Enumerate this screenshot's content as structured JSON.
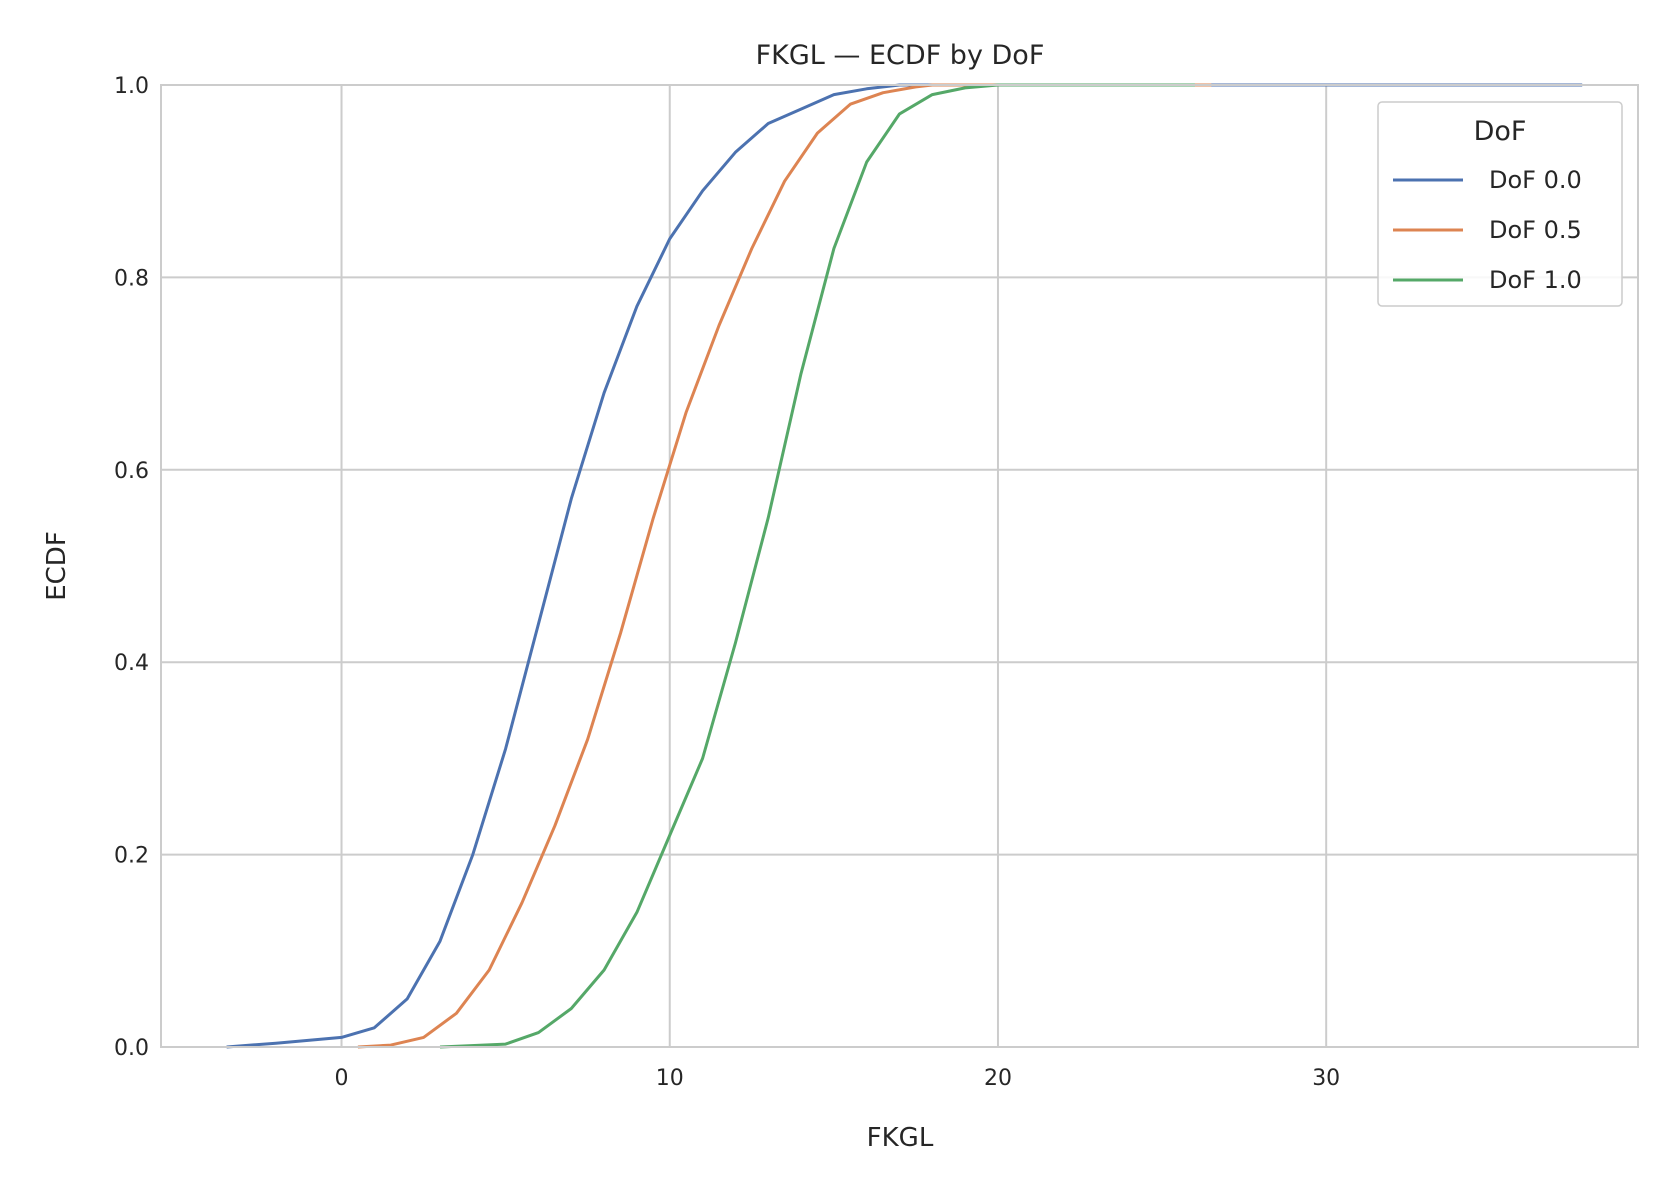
{
  "chart_data": {
    "type": "line",
    "title": "FKGL — ECDF by DoF",
    "xlabel": "FKGL",
    "ylabel": "ECDF",
    "xlim": [
      -5.5,
      39.5
    ],
    "ylim": [
      0,
      1
    ],
    "xticks": [
      0,
      10,
      20,
      30
    ],
    "yticks": [
      0.0,
      0.2,
      0.4,
      0.6,
      0.8,
      1.0
    ],
    "xtick_labels": [
      "0",
      "10",
      "20",
      "30"
    ],
    "ytick_labels": [
      "0.0",
      "0.2",
      "0.4",
      "0.6",
      "0.8",
      "1.0"
    ],
    "grid": true,
    "legend": {
      "title": "DoF",
      "placement": "top-right"
    },
    "series": [
      {
        "name": "DoF 0.0",
        "color": "#4c72b0",
        "points": [
          [
            -3.5,
            0.0
          ],
          [
            -2,
            0.004
          ],
          [
            0,
            0.01
          ],
          [
            1,
            0.02
          ],
          [
            2,
            0.05
          ],
          [
            3,
            0.11
          ],
          [
            4,
            0.2
          ],
          [
            5,
            0.31
          ],
          [
            6,
            0.44
          ],
          [
            7,
            0.57
          ],
          [
            8,
            0.68
          ],
          [
            9,
            0.77
          ],
          [
            10,
            0.84
          ],
          [
            11,
            0.89
          ],
          [
            12,
            0.93
          ],
          [
            13,
            0.96
          ],
          [
            14,
            0.975
          ],
          [
            15,
            0.99
          ],
          [
            16,
            0.996
          ],
          [
            17,
            1.0
          ],
          [
            37.8,
            1.0
          ]
        ]
      },
      {
        "name": "DoF 0.5",
        "color": "#dd8452",
        "points": [
          [
            0.5,
            0.0
          ],
          [
            1.5,
            0.002
          ],
          [
            2.5,
            0.01
          ],
          [
            3.5,
            0.035
          ],
          [
            4.5,
            0.08
          ],
          [
            5.5,
            0.15
          ],
          [
            6.5,
            0.23
          ],
          [
            7.5,
            0.32
          ],
          [
            8.5,
            0.43
          ],
          [
            9.5,
            0.55
          ],
          [
            10.5,
            0.66
          ],
          [
            11.5,
            0.75
          ],
          [
            12.5,
            0.83
          ],
          [
            13.5,
            0.9
          ],
          [
            14.5,
            0.95
          ],
          [
            15.5,
            0.98
          ],
          [
            16.5,
            0.992
          ],
          [
            17.5,
            0.998
          ],
          [
            18,
            1.0
          ],
          [
            26.5,
            1.0
          ]
        ]
      },
      {
        "name": "DoF 1.0",
        "color": "#55a868",
        "points": [
          [
            3.0,
            0.0
          ],
          [
            5,
            0.003
          ],
          [
            6,
            0.015
          ],
          [
            7,
            0.04
          ],
          [
            8,
            0.08
          ],
          [
            9,
            0.14
          ],
          [
            10,
            0.22
          ],
          [
            11,
            0.3
          ],
          [
            12,
            0.42
          ],
          [
            13,
            0.55
          ],
          [
            14,
            0.7
          ],
          [
            15,
            0.83
          ],
          [
            16,
            0.92
          ],
          [
            17,
            0.97
          ],
          [
            18,
            0.99
          ],
          [
            19,
            0.997
          ],
          [
            20,
            1.0
          ],
          [
            26,
            1.0
          ]
        ]
      }
    ]
  }
}
